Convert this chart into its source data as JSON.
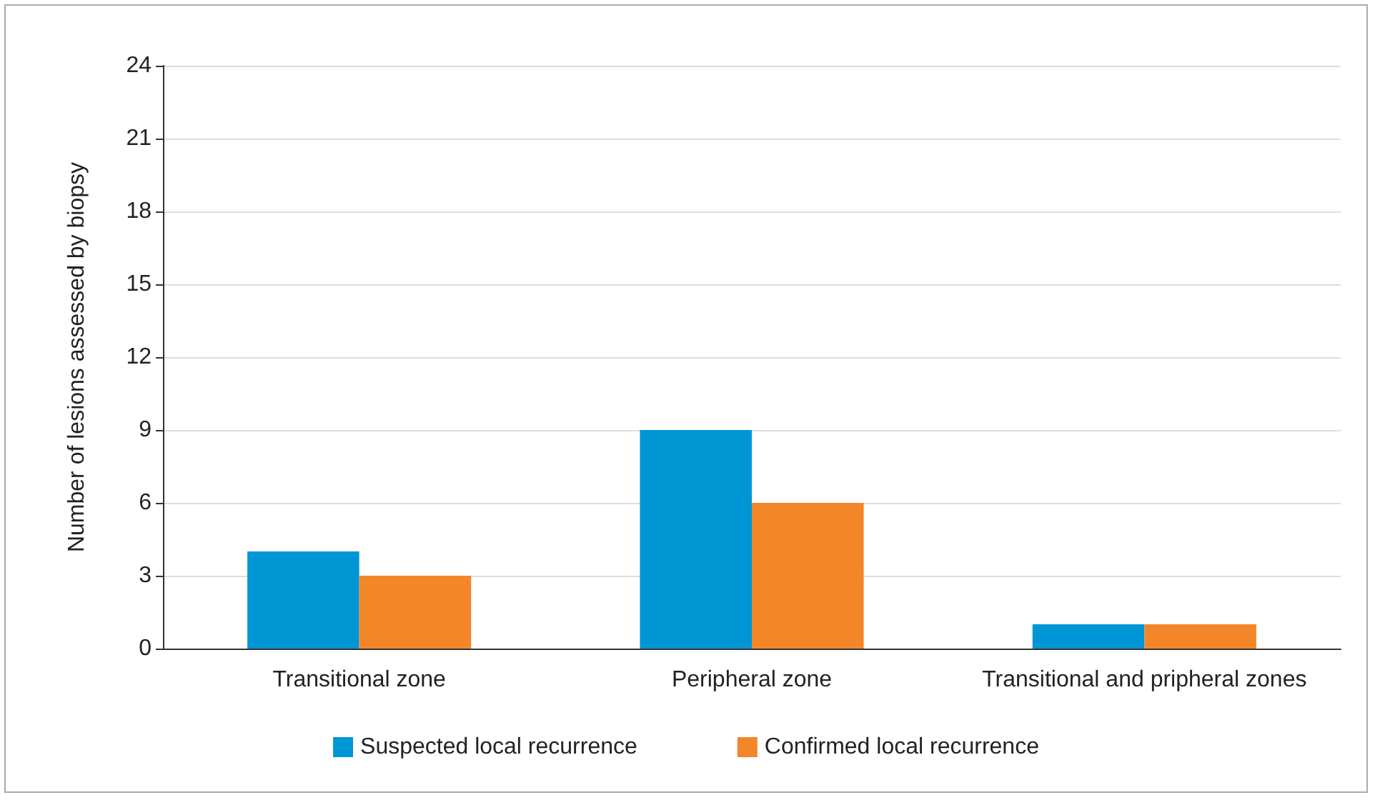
{
  "chart_data": {
    "type": "bar",
    "ylabel": "Number of lesions assessed by biopsy",
    "categories": [
      "Transitional zone",
      "Peripheral zone",
      "Transitional and pripheral zones"
    ],
    "series": [
      {
        "name": "Suspected local recurrence",
        "color": "#0096d6",
        "values": [
          4,
          9,
          1
        ]
      },
      {
        "name": "Confirmed local recurrence",
        "color": "#f4862a",
        "values": [
          3,
          6,
          1
        ]
      }
    ],
    "ylim": [
      0,
      24
    ],
    "yticks": [
      0,
      3,
      6,
      9,
      12,
      15,
      18,
      21,
      24
    ],
    "grid": "y",
    "legend": "bottom"
  }
}
